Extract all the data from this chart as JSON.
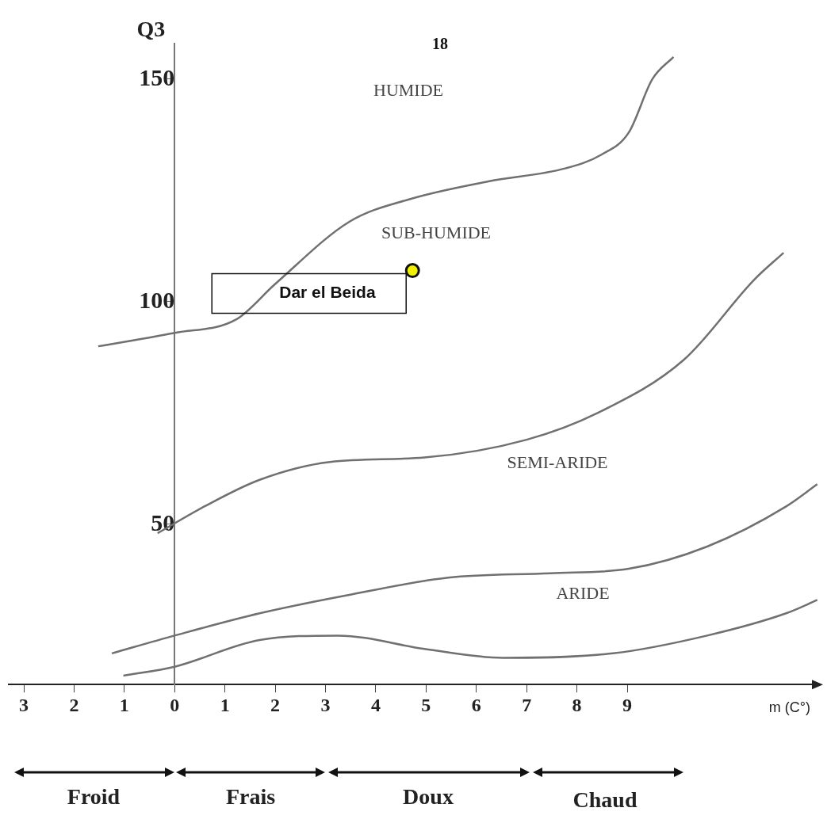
{
  "chart_data": {
    "type": "line",
    "xlabel": "m (C°)",
    "ylabel": "Q3",
    "xlim": [
      -3.3,
      12.8
    ],
    "ylim": [
      14,
      158
    ],
    "xticks": [
      {
        "value": -3,
        "label": "3"
      },
      {
        "value": -2,
        "label": "2"
      },
      {
        "value": -1,
        "label": "1"
      },
      0,
      1,
      2,
      3,
      4,
      5,
      6,
      7,
      8,
      9
    ],
    "yticks": [
      50,
      100,
      150
    ],
    "grid": false,
    "legend": false,
    "series": [
      {
        "type": "line",
        "color": "#707070",
        "marker": "none",
        "x": [
          -1.52,
          0,
          1.22,
          2.0,
          3.48,
          4.66,
          6.22,
          7.78,
          8.48,
          9.03,
          9.5,
          9.92
        ],
        "values": [
          90,
          93,
          96,
          104,
          118,
          123,
          127,
          130,
          133,
          138,
          150,
          155
        ]
      },
      {
        "type": "line",
        "color": "#707070",
        "marker": "none",
        "x": [
          -0.34,
          0.59,
          1.69,
          3.09,
          4.97,
          7.0,
          8.41,
          10.13,
          11.53,
          12.11
        ],
        "values": [
          48,
          54,
          60,
          64,
          65,
          69,
          75,
          87,
          105,
          111
        ]
      },
      {
        "type": "line",
        "color": "#707070",
        "marker": "none",
        "x": [
          -1.25,
          0,
          1.69,
          3.41,
          5.44,
          7.47,
          9.03,
          10.59,
          12.16,
          12.78
        ],
        "values": [
          21,
          25,
          30,
          34,
          38,
          39,
          40,
          45,
          54,
          59
        ]
      },
      {
        "type": "line",
        "color": "#707070",
        "marker": "none",
        "x": [
          -1.02,
          0,
          1.69,
          3.25,
          4.97,
          6.53,
          8.72,
          10.59,
          12.16,
          12.78
        ],
        "values": [
          16,
          18,
          24,
          25,
          22,
          20,
          21,
          25,
          30,
          33
        ]
      },
      {
        "type": "scatter",
        "color": "#f0f000",
        "marker": "circle",
        "x": [
          4.73
        ],
        "values": [
          107
        ]
      }
    ],
    "annotations": [
      "18",
      "HUMIDE",
      "SUB-HUMIDE",
      "SEMI-ARIDE",
      "ARIDE",
      {
        "text": "Dar el Beida",
        "x": 4.73,
        "y": 107
      },
      "Froid",
      "Frais",
      "Doux",
      "Chaud"
    ]
  }
}
